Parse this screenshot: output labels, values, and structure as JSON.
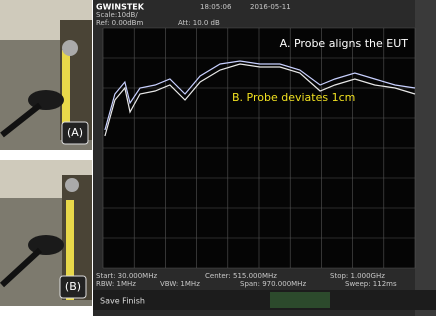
{
  "photos": {
    "a_label": "(A)",
    "b_label": "(B)"
  },
  "header": {
    "brand": "GWINSTEK",
    "time": "18:05:06",
    "date": "2016-05-11",
    "scale": "Scale:10dB/",
    "ref": "Ref: 0.00dBm",
    "att": "Att: 10.0 dB"
  },
  "footer": {
    "start": "Start: 30.000MHz",
    "center": "Center: 515.000MHz",
    "stop": "Stop: 1.000GHz",
    "rbw": "RBW: 1MHz",
    "vbw": "VBW: 1MHz",
    "span": "Span: 970.000MHz",
    "sweep": "Sweep: 112ms",
    "status": "Save Finish"
  },
  "chart_data": {
    "type": "line",
    "x": [
      36,
      67,
      98,
      114,
      145,
      192,
      238,
      285,
      332,
      394,
      456,
      518,
      580,
      642,
      705,
      751,
      813,
      875,
      938,
      1000
    ],
    "xlim": [
      30,
      1000
    ],
    "ylim": [
      -80,
      0
    ],
    "series": [
      {
        "name": "A. Probe aligns the EUT",
        "color": "#ffffff",
        "values": [
          -34,
          -22,
          -18,
          -25,
          -20,
          -19,
          -17,
          -22,
          -16,
          -12,
          -11,
          -12,
          -12,
          -14,
          -19,
          -17,
          -15,
          -17,
          -19,
          -20
        ]
      },
      {
        "name": "B. Probe deviates 1cm",
        "color": "#f0e020",
        "values": [
          -36,
          -24,
          -20,
          -28,
          -22,
          -21,
          -19,
          -24,
          -18,
          -14,
          -12,
          -13,
          -13,
          -15,
          -21,
          -19,
          -17,
          -19,
          -20,
          -22
        ]
      }
    ]
  }
}
